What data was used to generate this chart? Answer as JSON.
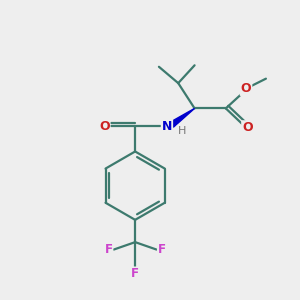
{
  "bg_color": "#eeeeee",
  "atom_colors": {
    "C": "#3d7a6e",
    "O": "#cc2222",
    "N": "#0000cc",
    "F": "#cc44cc",
    "H": "#777777"
  },
  "bond_color": "#3d7a6e",
  "figsize": [
    3.0,
    3.0
  ],
  "dpi": 100
}
